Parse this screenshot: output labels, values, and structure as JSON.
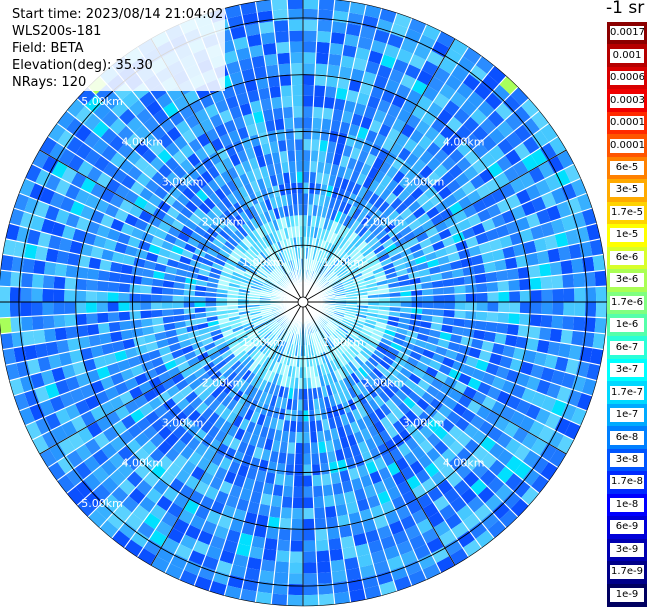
{
  "info": {
    "start_time": "Start time: 2023/08/14 21:04:02",
    "device": "WLS200s-181",
    "field": "Field: BETA",
    "elevation": "Elevation(deg): 35.30",
    "nrays": "NRays: 120"
  },
  "colorbar": {
    "units": "-1 sr",
    "labels": [
      "0.0017",
      "0.001",
      "0.0006",
      "0.0003",
      "0.00017",
      "0.0001",
      "6e-5",
      "3e-5",
      "1.7e-5",
      "1e-5",
      "6e-6",
      "3e-6",
      "1.7e-6",
      "1e-6",
      "6e-7",
      "3e-7",
      "1.7e-7",
      "1e-7",
      "6e-8",
      "3e-8",
      "1.7e-8",
      "1e-8",
      "6e-9",
      "3e-9",
      "1.7e-9",
      "1e-9"
    ],
    "colors": [
      "#8b0000",
      "#b50000",
      "#d80000",
      "#f00000",
      "#ff2a00",
      "#ff5500",
      "#ff8000",
      "#ffaa00",
      "#ffd200",
      "#ffff00",
      "#d8ff2a",
      "#aaff55",
      "#80ff80",
      "#55ffaa",
      "#2affd8",
      "#00ffff",
      "#00d8ff",
      "#00aaff",
      "#0080ff",
      "#0055ff",
      "#002aff",
      "#0000ff",
      "#0000d8",
      "#0000b0",
      "#000088",
      "#000060"
    ]
  },
  "chart_data": {
    "type": "heatmap",
    "projection": "polar-ppi",
    "field": "BETA",
    "elevation_deg": 35.3,
    "nrays": 120,
    "range_rings_km": [
      1,
      2,
      3,
      4,
      5
    ],
    "ring_labels": [
      "1.00km",
      "2.00km",
      "3.00km",
      "4.00km",
      "5.00km"
    ],
    "max_range_km": 5.35,
    "radial_spokes_deg": [
      0,
      30,
      60,
      90,
      120,
      150,
      180,
      210,
      240,
      270,
      300,
      330
    ],
    "value_range": [
      1e-09,
      0.0017
    ],
    "scale": "log",
    "dominant_values": [
      1e-08,
      6e-08,
      1e-07,
      3e-07
    ],
    "notes_visible": "Mostly blue/cyan returns; cyan-green patches near centre ring and isolated green/yellow bins at the outer edge"
  }
}
